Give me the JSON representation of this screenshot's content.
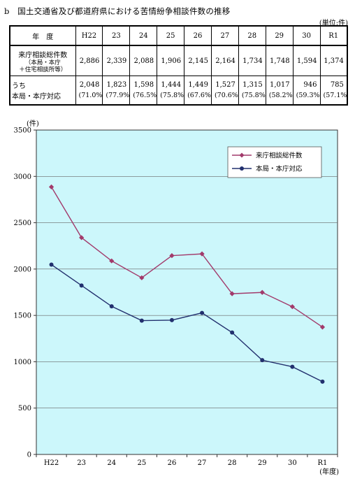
{
  "title": "b　国土交通省及び都道府県における苦情紛争相談件数の推移",
  "unit_note": "(単位:件)",
  "table": {
    "header_label": "年　度",
    "years": [
      "H22",
      "23",
      "24",
      "25",
      "26",
      "27",
      "28",
      "29",
      "30",
      "R1"
    ],
    "row1": {
      "label": "来庁相談総件数",
      "sub1": "（本局・本庁",
      "sub2": "＋住宅相談所等）",
      "values": [
        "2,886",
        "2,339",
        "2,088",
        "1,906",
        "2,145",
        "2,164",
        "1,734",
        "1,748",
        "1,594",
        "1,374"
      ]
    },
    "row2": {
      "label_prefix": "うち",
      "label": "本局・本庁対応",
      "values": [
        "2,048",
        "1,823",
        "1,598",
        "1,444",
        "1,449",
        "1,527",
        "1,315",
        "1,017",
        "946",
        "785"
      ],
      "percents": [
        "(71.0%)",
        "(77.9%)",
        "(76.5%)",
        "(75.8%)",
        "(67.6%)",
        "(70.6%)",
        "(75.8%)",
        "(58.2%)",
        "(59.3%)",
        "(57.1%)"
      ]
    }
  },
  "chart_data": {
    "type": "line",
    "categories": [
      "H22",
      "23",
      "24",
      "25",
      "26",
      "27",
      "28",
      "29",
      "30",
      "R1"
    ],
    "series": [
      {
        "name": "来庁相談総件数",
        "values": [
          2886,
          2339,
          2088,
          1906,
          2145,
          2164,
          1734,
          1748,
          1594,
          1374
        ],
        "color": "#a23a6b",
        "marker": "diamond"
      },
      {
        "name": "本局・本庁対応",
        "values": [
          2048,
          1823,
          1598,
          1444,
          1449,
          1527,
          1315,
          1017,
          946,
          785
        ],
        "color": "#22306e",
        "marker": "circle"
      }
    ],
    "ylabel": "(件)",
    "xlabel": "(年度)",
    "ylim": [
      0,
      3500
    ],
    "yticks": [
      0,
      500,
      1000,
      1500,
      2000,
      2500,
      3000,
      3500
    ],
    "grid": true,
    "legend_position": "top-right",
    "plot_background": "#ccf7fb"
  }
}
